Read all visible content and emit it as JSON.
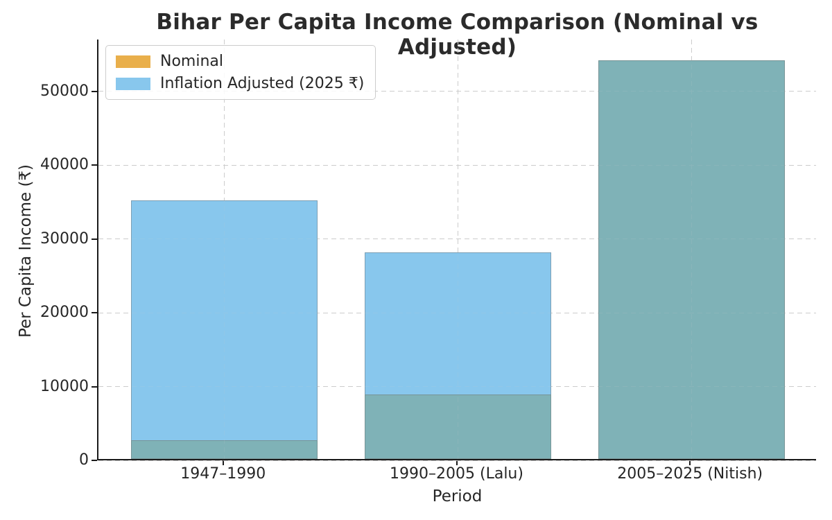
{
  "title": "Bihar Per Capita Income Comparison (Nominal vs Adjusted)",
  "chart_data": {
    "type": "bar",
    "title": "Bihar Per Capita Income Comparison (Nominal vs Adjusted)",
    "xlabel": "Period",
    "ylabel": "Per Capita Income (₹)",
    "categories": [
      "1947–1990",
      "1990–2005 (Lalu)",
      "2005–2025 (Nitish)"
    ],
    "series": [
      {
        "name": "Nominal",
        "values": [
          2500,
          8700,
          54000
        ],
        "color": "#E9AF4B",
        "rendered_overlap_color": "#7FB2B7"
      },
      {
        "name": "Inflation Adjusted (2025 ₹)",
        "values": [
          35000,
          28000,
          54000
        ],
        "color": "#88C7ED"
      }
    ],
    "ylim": [
      0,
      57000
    ],
    "yticks": [
      0,
      10000,
      20000,
      30000,
      40000,
      50000
    ],
    "bar_width_fraction": 0.8,
    "grid": "dashed-both-axes",
    "legend_position": "upper-left"
  },
  "colors": {
    "background": "#ffffff",
    "grid": "#cccccc",
    "spine": "#1a1a1a",
    "text": "#262626",
    "title_text": "#2b2b2b",
    "bar_edge": "rgba(110,110,110,0.45)"
  }
}
